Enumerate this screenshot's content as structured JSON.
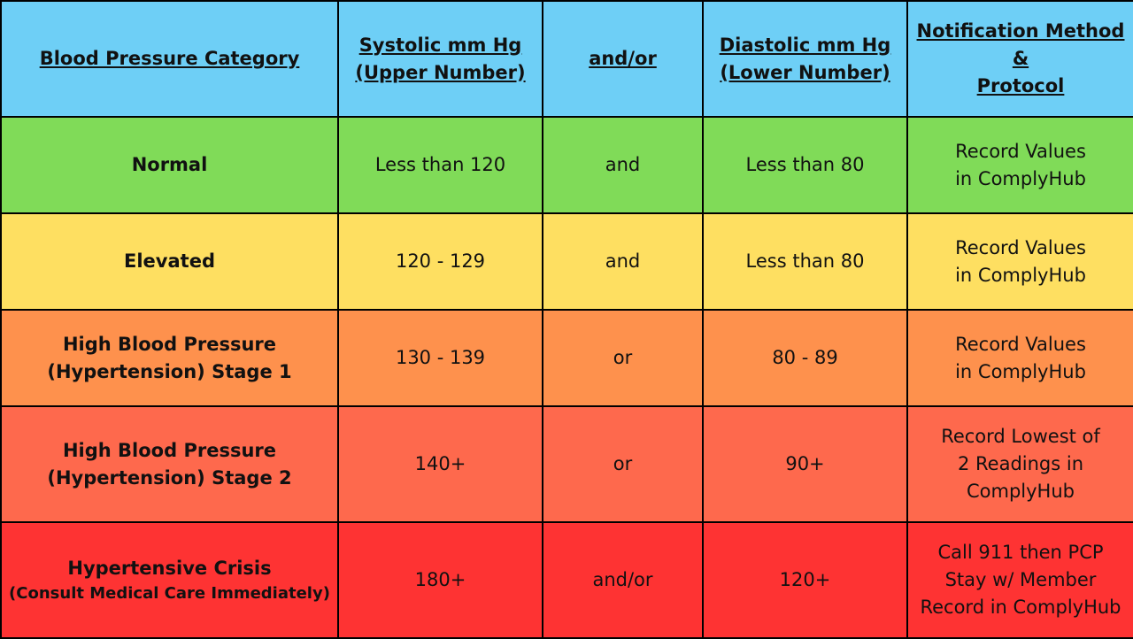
{
  "header": {
    "category": "Blood Pressure Category",
    "systolic": [
      "Systolic mm Hg",
      "(Upper Number)"
    ],
    "andor": "and/or",
    "diastolic": [
      "Diastolic mm Hg",
      "(Lower Number)"
    ],
    "notification": [
      "Notification Method",
      "&",
      "Protocol"
    ]
  },
  "rows": [
    {
      "category": [
        "Normal"
      ],
      "systolic": "Less than 120",
      "op": "and",
      "diastolic": "Less than 80",
      "protocol": [
        "Record Values",
        "in ComplyHub"
      ],
      "color": "#80db58"
    },
    {
      "category": [
        "Elevated"
      ],
      "systolic": "120 - 129",
      "op": "and",
      "diastolic": "Less than 80",
      "protocol": [
        "Record Values",
        "in ComplyHub"
      ],
      "color": "#fedf61"
    },
    {
      "category": [
        "High Blood Pressure",
        "(Hypertension) Stage 1"
      ],
      "systolic": "130 - 139",
      "op": "or",
      "diastolic": "80 - 89",
      "protocol": [
        "Record Values",
        "in ComplyHub"
      ],
      "color": "#fe914d"
    },
    {
      "category": [
        "High Blood Pressure",
        "(Hypertension) Stage 2"
      ],
      "systolic": "140+",
      "op": "or",
      "diastolic": "90+",
      "protocol": [
        "Record Lowest of",
        "2 Readings in",
        "ComplyHub"
      ],
      "color": "#fe694d"
    },
    {
      "category": [
        "Hypertensive Crisis",
        "(Consult Medical Care Immediately)"
      ],
      "systolic": "180+",
      "op": "and/or",
      "diastolic": "120+",
      "protocol": [
        "Call 911 then PCP",
        "Stay w/ Member",
        "Record in ComplyHub"
      ],
      "color": "#fe3333"
    }
  ],
  "colors": {
    "header": "#6ecff6"
  }
}
